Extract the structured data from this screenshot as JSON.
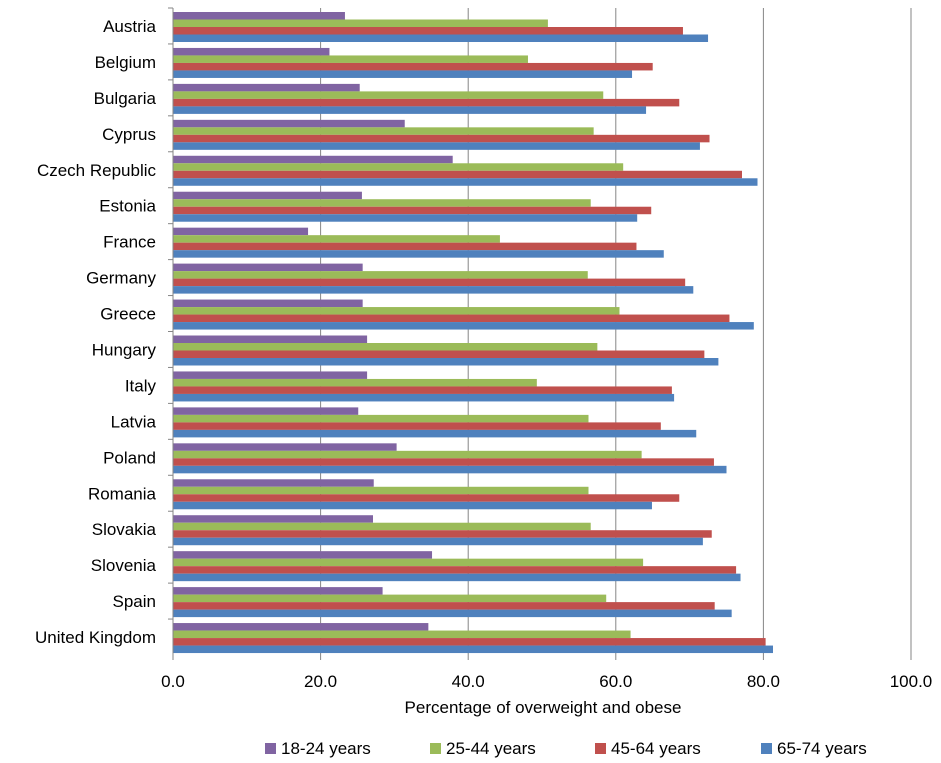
{
  "chart_data": {
    "type": "bar",
    "orientation": "horizontal",
    "categories": [
      "Austria",
      "Belgium",
      "Bulgaria",
      "Cyprus",
      "Czech Republic",
      "Estonia",
      "France",
      "Germany",
      "Greece",
      "Hungary",
      "Italy",
      "Latvia",
      "Poland",
      "Romania",
      "Slovakia",
      "Slovenia",
      "Spain",
      "United Kingdom"
    ],
    "series": [
      {
        "name": "18-24 years",
        "color": "#8064A2",
        "values": [
          23.3,
          21.2,
          25.3,
          31.4,
          37.9,
          25.6,
          18.3,
          25.7,
          25.7,
          26.3,
          26.3,
          25.1,
          30.3,
          27.2,
          27.1,
          35.1,
          28.4,
          34.6
        ]
      },
      {
        "name": "25-44 years",
        "color": "#9BBB59",
        "values": [
          50.8,
          48.1,
          58.3,
          57.0,
          61.0,
          56.6,
          44.3,
          56.2,
          60.5,
          57.5,
          49.3,
          56.3,
          63.5,
          56.3,
          56.6,
          63.7,
          58.7,
          62.0
        ]
      },
      {
        "name": "45-64 years",
        "color": "#C0504D",
        "values": [
          69.1,
          65.0,
          68.6,
          72.7,
          77.1,
          64.8,
          62.8,
          69.4,
          75.4,
          72.0,
          67.6,
          66.1,
          73.3,
          68.6,
          73.0,
          76.3,
          73.4,
          80.3
        ]
      },
      {
        "name": "65-74 years",
        "color": "#4F81BD",
        "values": [
          72.5,
          62.2,
          64.1,
          71.4,
          79.2,
          62.9,
          66.5,
          70.5,
          78.7,
          73.9,
          67.9,
          70.9,
          75.0,
          64.9,
          71.8,
          76.9,
          75.7,
          81.3
        ]
      }
    ],
    "xlabel": "Percentage of overweight and obese",
    "xlim": [
      0,
      100
    ],
    "xticks": [
      "0.0",
      "20.0",
      "40.0",
      "60.0",
      "80.0",
      "100.0"
    ],
    "xtick_values": [
      0,
      20,
      40,
      60,
      80,
      100
    ],
    "grid": true,
    "legend_position": "bottom"
  }
}
